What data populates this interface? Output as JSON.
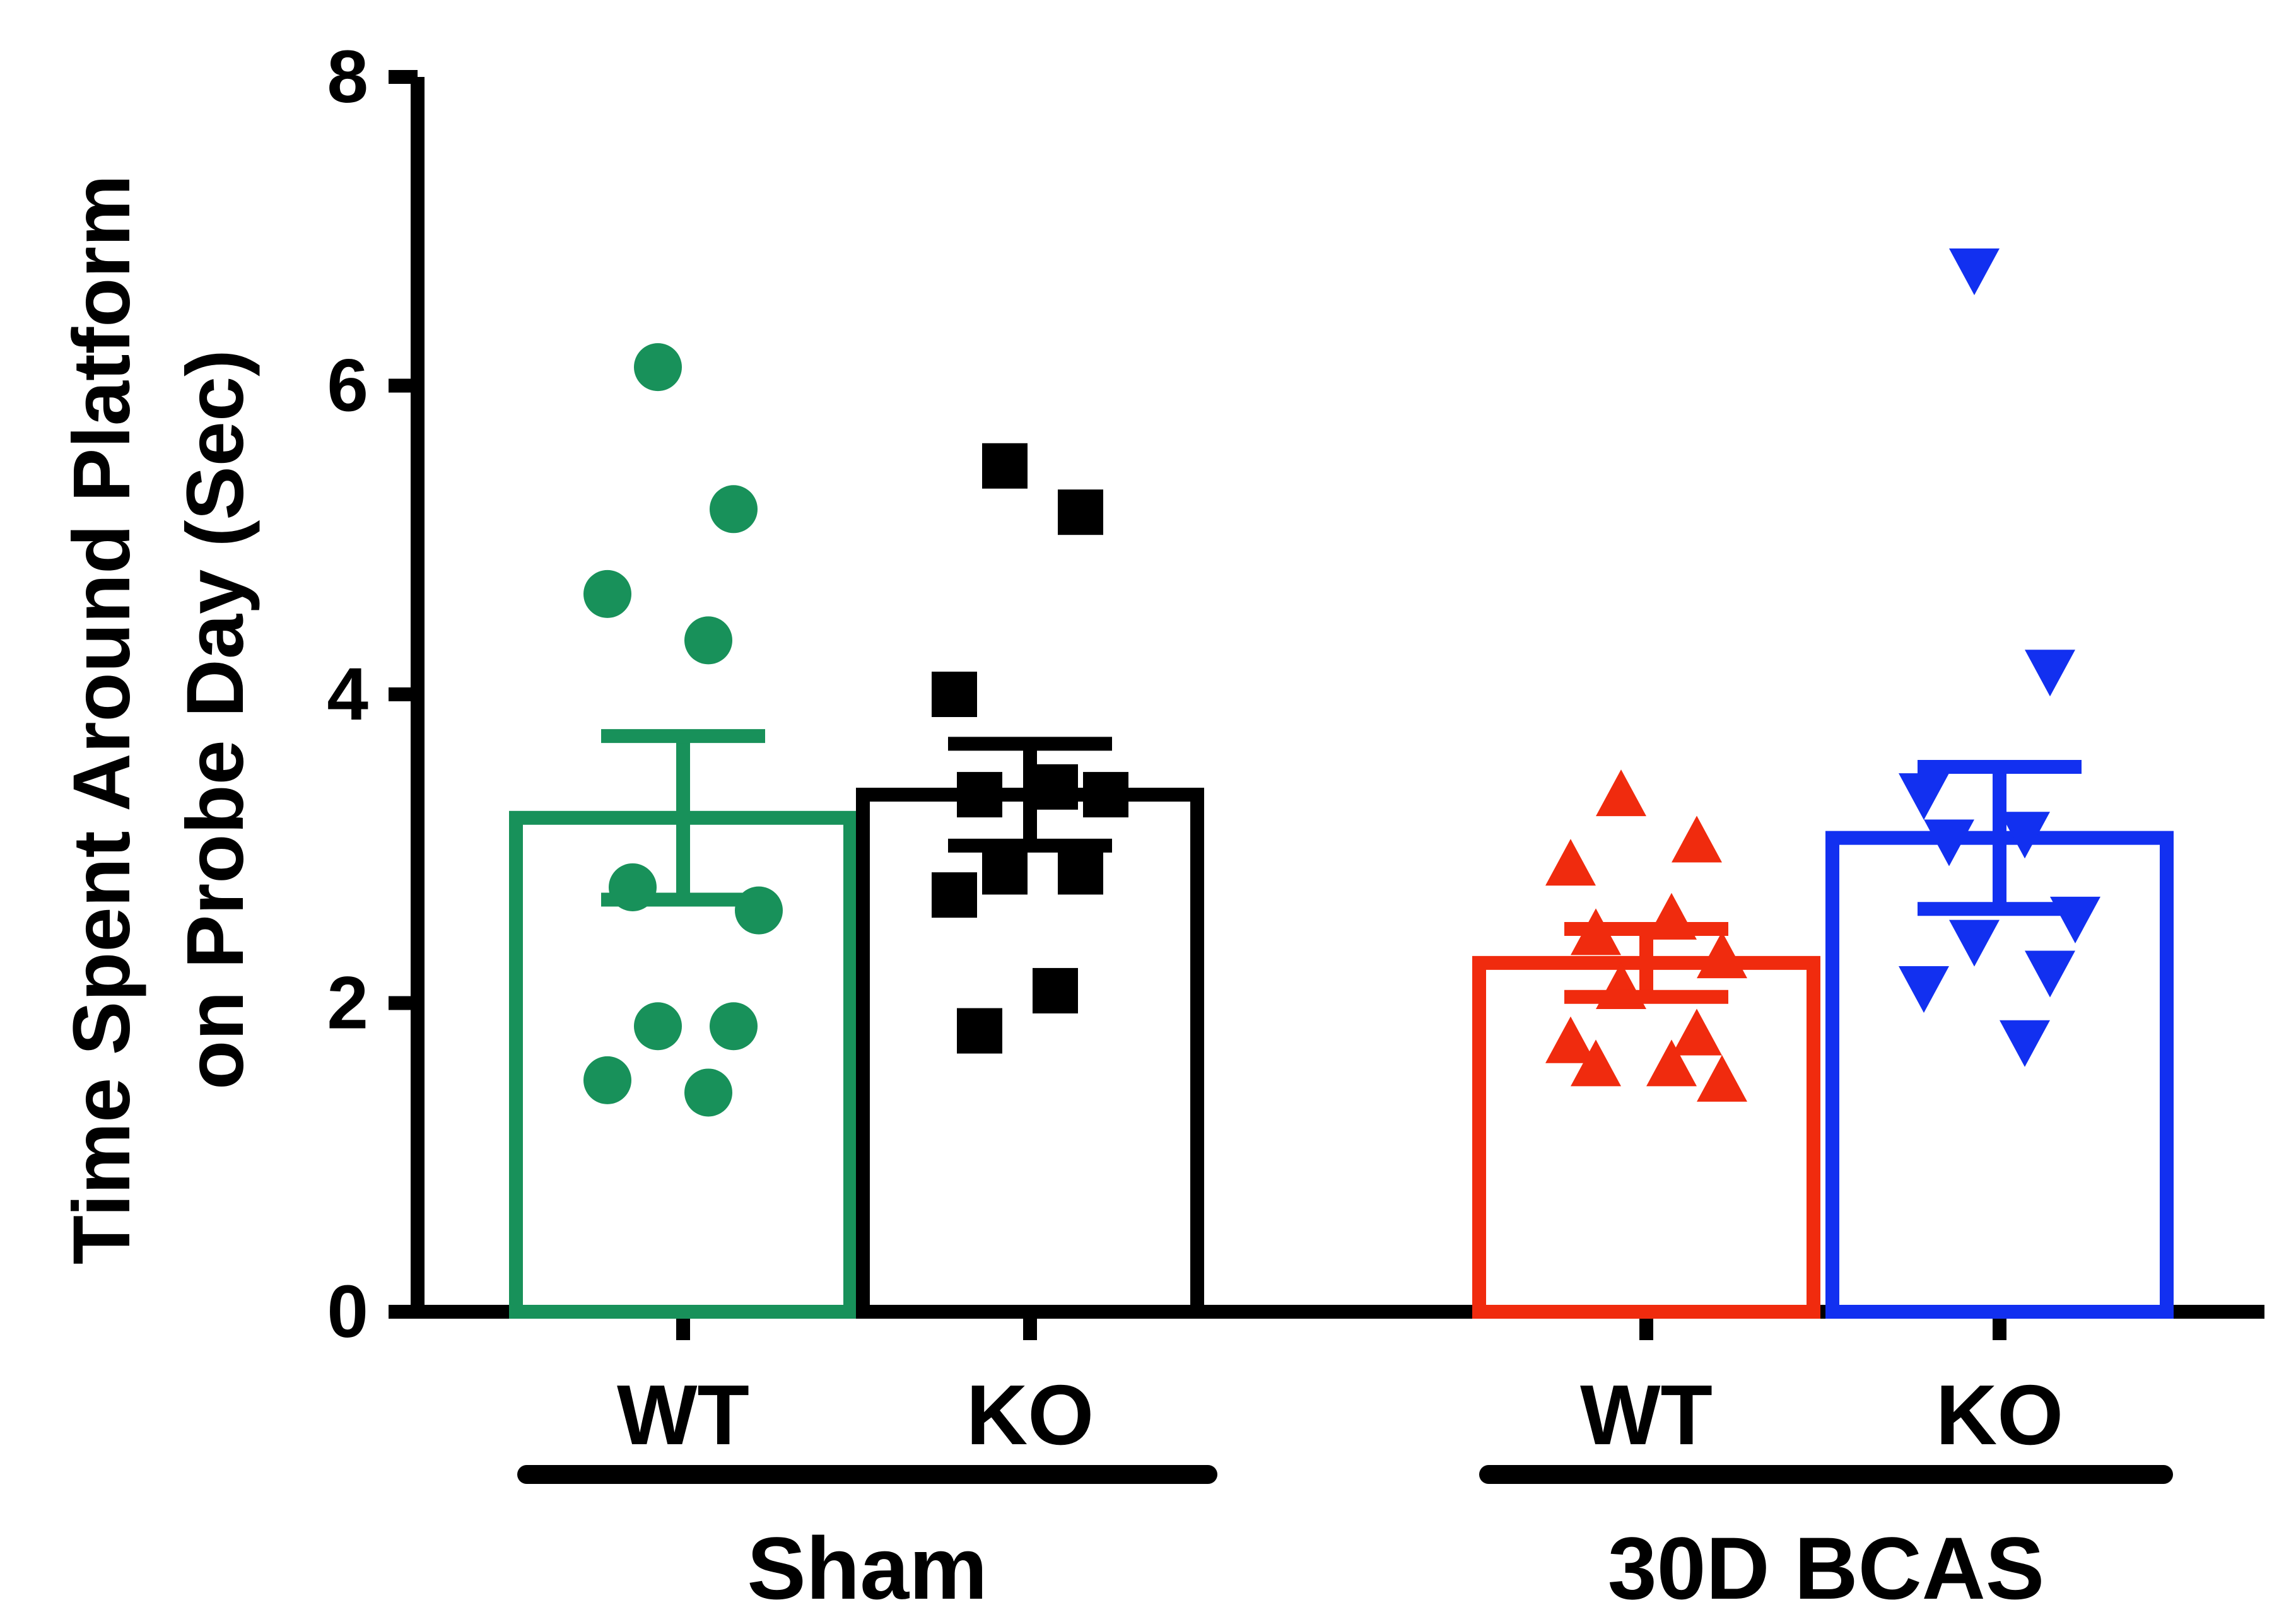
{
  "chart_data": {
    "type": "bar",
    "ylabel_line1": "Time Spent Around Platform",
    "ylabel_line2": "on Probe Day (Sec)",
    "xlabel": "",
    "ylim": [
      0,
      8
    ],
    "yticks": [
      0,
      2,
      4,
      6,
      8
    ],
    "grid": false,
    "legend": "none",
    "groups": [
      {
        "label": "Sham",
        "categories": [
          "WT",
          "KO"
        ]
      },
      {
        "label": "30D BCAS",
        "categories": [
          "WT",
          "KO"
        ]
      }
    ],
    "series": [
      {
        "group": "Sham",
        "category": "WT",
        "mean": 3.2,
        "sem": 0.53,
        "color": "#18915A",
        "marker": "circle",
        "points": [
          6.12,
          5.2,
          4.65,
          4.35,
          2.75,
          2.6,
          1.85,
          1.85,
          1.5,
          1.42
        ]
      },
      {
        "group": "Sham",
        "category": "KO",
        "mean": 3.35,
        "sem": 0.33,
        "color": "#000000",
        "marker": "square",
        "points": [
          5.48,
          5.18,
          4.0,
          3.4,
          3.35,
          3.35,
          2.85,
          2.85,
          2.7,
          2.08,
          1.82
        ]
      },
      {
        "group": "30D BCAS",
        "category": "WT",
        "mean": 2.26,
        "sem": 0.22,
        "color": "#F02B0E",
        "marker": "triangle-up",
        "points": [
          3.35,
          3.05,
          2.9,
          2.55,
          2.45,
          2.3,
          2.1,
          1.8,
          1.75,
          1.6,
          1.6,
          1.5
        ]
      },
      {
        "group": "30D BCAS",
        "category": "KO",
        "mean": 3.07,
        "sem": 0.46,
        "color": "#1230F0",
        "marker": "triangle-down",
        "points": [
          6.75,
          4.15,
          3.35,
          3.1,
          3.05,
          2.55,
          2.4,
          2.2,
          2.1,
          1.75
        ]
      }
    ]
  }
}
